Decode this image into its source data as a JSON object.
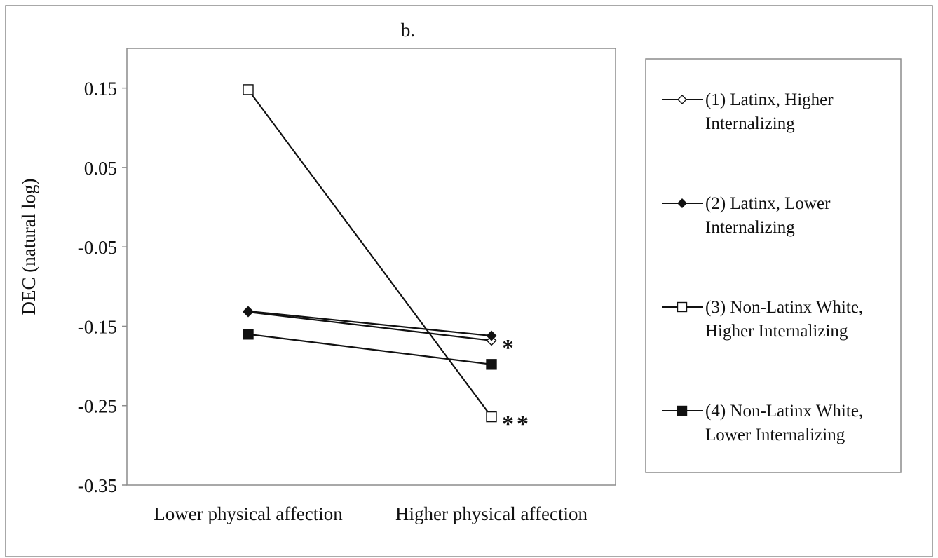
{
  "chart_data": {
    "type": "line",
    "title": "b.",
    "xlabel": "",
    "ylabel": "DEC (natural log)",
    "categories": [
      "Lower physical affection",
      "Higher physical affection"
    ],
    "ylim": [
      -0.35,
      0.2
    ],
    "yticks": [
      "0.15",
      "0.05",
      "-0.05",
      "-0.15",
      "-0.25",
      "-0.35"
    ],
    "grid": false,
    "legend_position": "right",
    "series": [
      {
        "name": "(1) Latinx, Higher Internalizing",
        "legend_lines": [
          "(1) Latinx, Higher",
          "Internalizing"
        ],
        "marker": "diamond",
        "filled": false,
        "values": [
          -0.132,
          -0.168
        ]
      },
      {
        "name": "(2) Latinx, Lower Internalizing",
        "legend_lines": [
          "(2) Latinx, Lower",
          "Internalizing"
        ],
        "marker": "diamond",
        "filled": true,
        "values": [
          -0.131,
          -0.162
        ]
      },
      {
        "name": "(3) Non-Latinx White, Higher Internalizing",
        "legend_lines": [
          "(3) Non-Latinx White,",
          "Higher Internalizing"
        ],
        "marker": "square",
        "filled": false,
        "values": [
          0.148,
          -0.264
        ]
      },
      {
        "name": "(4) Non-Latinx White, Lower Internalizing",
        "legend_lines": [
          "(4) Non-Latinx White,",
          "Lower Internalizing"
        ],
        "marker": "square",
        "filled": true,
        "values": [
          -0.16,
          -0.198
        ]
      }
    ],
    "annotations": [
      {
        "text": "*",
        "category": 1,
        "y": -0.168
      },
      {
        "text": "**",
        "category": 1,
        "y": -0.264
      }
    ]
  }
}
